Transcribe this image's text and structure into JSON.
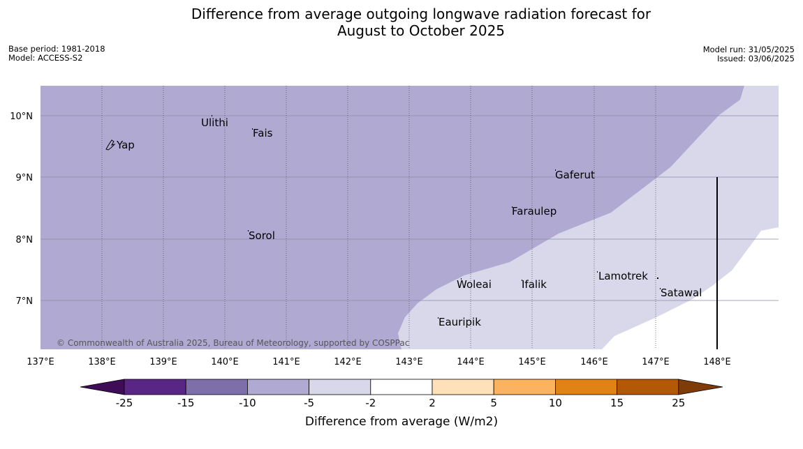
{
  "title": {
    "line1": "Difference from average outgoing longwave radiation forecast for",
    "line2": "August to October 2025"
  },
  "meta": {
    "base_period": "Base period: 1981-2018",
    "model": "Model: ACCESS-S2",
    "model_run": "Model run: 31/05/2025",
    "issued": "Issued: 03/06/2025"
  },
  "map": {
    "lon_ticks": [
      "137°E",
      "138°E",
      "139°E",
      "140°E",
      "141°E",
      "142°E",
      "143°E",
      "144°E",
      "145°E",
      "146°E",
      "147°E",
      "148°E"
    ],
    "lat_ticks": [
      "10°N",
      "9°N",
      "8°N",
      "7°N"
    ],
    "places": [
      {
        "name": "Yap"
      },
      {
        "name": "Ulithi"
      },
      {
        "name": "Fais"
      },
      {
        "name": "Gaferut"
      },
      {
        "name": "Faraulep"
      },
      {
        "name": "Sorol"
      },
      {
        "name": "Lamotrek"
      },
      {
        "name": "Woleai"
      },
      {
        "name": "Ifalik"
      },
      {
        "name": "Satawal"
      },
      {
        "name": "Eauripik"
      }
    ],
    "copyright": "© Commonwealth of Australia 2025, Bureau of Meteorology, supported by COSPPac",
    "colors": {
      "between_-10_and_-5": "#b0aad2",
      "between_-5_and_-2": "#d8d8ea",
      "between_-2_and_2": "#ffffff"
    }
  },
  "legend": {
    "title": "Difference from average (W/m2)",
    "ticks": [
      "-25",
      "-15",
      "-10",
      "-5",
      "-2",
      "2",
      "5",
      "10",
      "15",
      "25"
    ],
    "colors": [
      "#3f0d57",
      "#5a2686",
      "#7e6ea9",
      "#b0aad2",
      "#d8d8ea",
      "#ffffff",
      "#fee1b8",
      "#fbb35f",
      "#e08214",
      "#b35806",
      "#7f3b08"
    ]
  }
}
